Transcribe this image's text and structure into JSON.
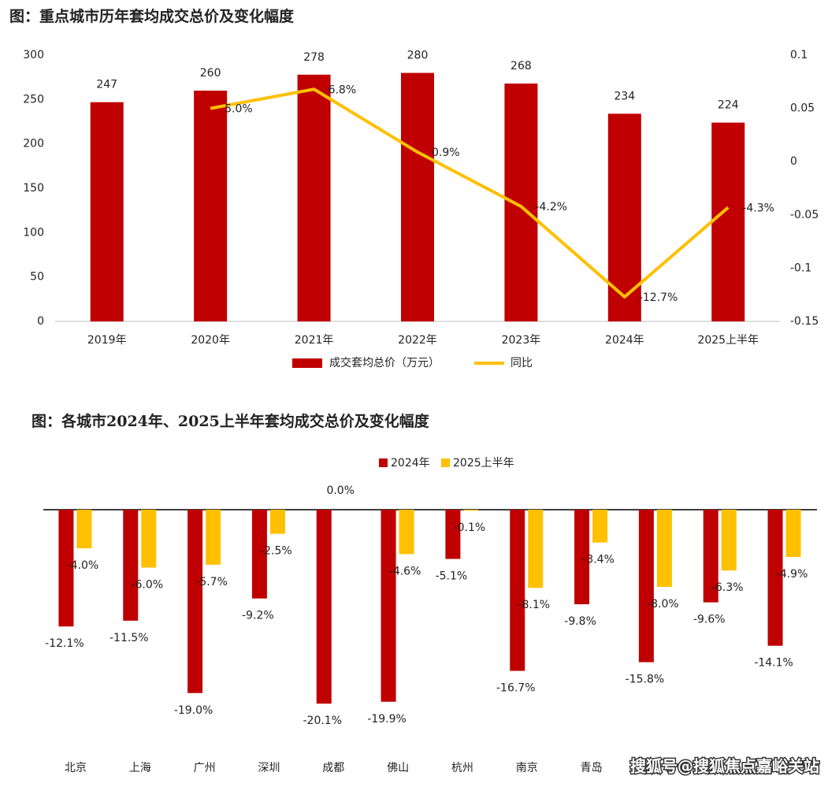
{
  "chart_data": [
    {
      "type": "bar-line",
      "title": "图：重点城市历年套均成交总价及变化幅度",
      "categories": [
        "2019年",
        "2020年",
        "2021年",
        "2022年",
        "2023年",
        "2024年",
        "2025上半年"
      ],
      "series": [
        {
          "name": "成交套均总价（万元）",
          "type": "bar",
          "color": "#c00000",
          "values": [
            247,
            260,
            278,
            280,
            268,
            234,
            224
          ]
        },
        {
          "name": "同比",
          "type": "line",
          "color": "#ffc000",
          "axis": "y2",
          "values": [
            null,
            0.05,
            0.068,
            0.009,
            -0.042,
            -0.127,
            -0.043
          ],
          "value_labels": [
            null,
            "5.0%",
            "6.8%",
            "0.9%",
            "-4.2%",
            "-12.7%",
            "-4.3%"
          ]
        }
      ],
      "ylim": [
        0,
        300
      ],
      "yticks": [
        0,
        50,
        100,
        150,
        200,
        250,
        300
      ],
      "y2lim": [
        -0.15,
        0.1
      ],
      "y2ticks": [
        -0.15,
        -0.1,
        -0.05,
        0,
        0.05,
        0.1
      ],
      "legend": "bottom"
    },
    {
      "type": "grouped-bar",
      "title": "图：各城市2024年、2025上半年套均成交总价及变化幅度",
      "categories": [
        "北京",
        "上海",
        "广州",
        "深圳",
        "成都",
        "佛山",
        "杭州",
        "南京",
        "青岛",
        null,
        null,
        null
      ],
      "series": [
        {
          "name": "2024年",
          "color": "#c00000",
          "values": [
            -12.1,
            -11.5,
            -19.0,
            -9.2,
            -20.1,
            -19.9,
            -5.1,
            -16.7,
            -9.8,
            -15.8,
            -9.6,
            -14.1
          ],
          "value_labels": [
            "-12.1%",
            "-11.5%",
            "-19.0%",
            "-9.2%",
            "-20.1%",
            "-19.9%",
            "-5.1%",
            "-16.7%",
            "-9.8%",
            "-15.8%",
            "-9.6%",
            "-14.1%"
          ]
        },
        {
          "name": "2025上半年",
          "color": "#ffc000",
          "values": [
            -4.0,
            -6.0,
            -5.7,
            -2.5,
            0.0,
            -4.6,
            -0.1,
            -8.1,
            -3.4,
            -8.0,
            -6.3,
            -4.9
          ],
          "value_labels": [
            "-4.0%",
            "-6.0%",
            "-5.7%",
            "-2.5%",
            "0.0%",
            "-4.6%",
            "-0.1%",
            "-8.1%",
            "-3.4%",
            "-8.0%",
            "-6.3%",
            "-4.9%"
          ]
        }
      ],
      "legend": "top"
    }
  ],
  "watermark": "搜狐号@搜狐焦点嘉峪关站"
}
